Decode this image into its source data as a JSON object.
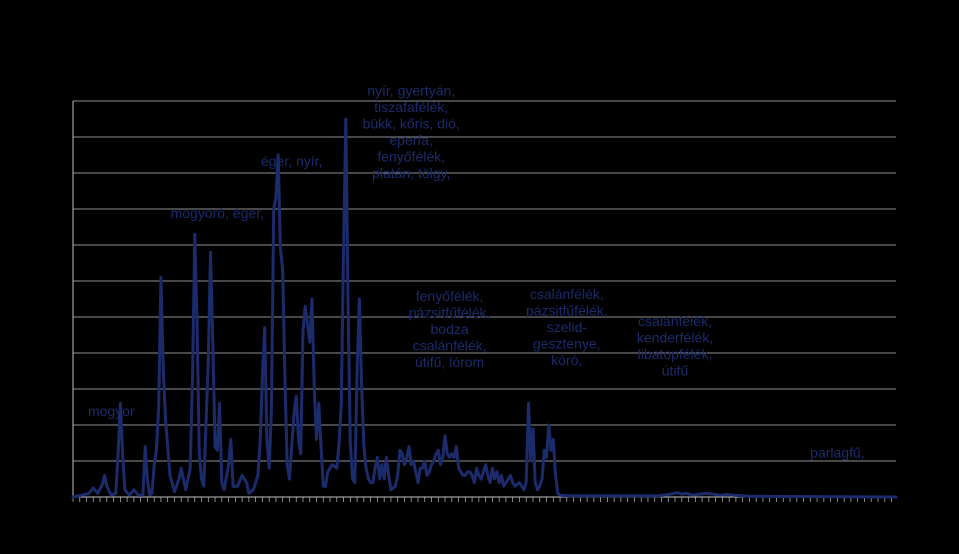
{
  "chart_data": {
    "type": "line",
    "title": "",
    "xlabel": "",
    "ylabel": "",
    "x_start": 0,
    "x_end": 365,
    "ylim": [
      0,
      11
    ],
    "grid": true,
    "legend": "none",
    "series": [
      {
        "color": "#1b2b6b",
        "points": [
          [
            0,
            0
          ],
          [
            4,
            0.05
          ],
          [
            7,
            0.1
          ],
          [
            9,
            0.25
          ],
          [
            11,
            0.1
          ],
          [
            13,
            0.35
          ],
          [
            14,
            0.6
          ],
          [
            15,
            0.3
          ],
          [
            17,
            0.05
          ],
          [
            19,
            0.1
          ],
          [
            20,
            1.2
          ],
          [
            21,
            2.6
          ],
          [
            22,
            1.2
          ],
          [
            23,
            0.2
          ],
          [
            25,
            0.05
          ],
          [
            27,
            0.2
          ],
          [
            29,
            0.05
          ],
          [
            31,
            0.05
          ],
          [
            32,
            1.4
          ],
          [
            33,
            0.5
          ],
          [
            34,
            0.05
          ],
          [
            35,
            0.1
          ],
          [
            36,
            0.9
          ],
          [
            37,
            1.3
          ],
          [
            38,
            2.5
          ],
          [
            39,
            6.1
          ],
          [
            40,
            3.6
          ],
          [
            41,
            2.2
          ],
          [
            43,
            0.6
          ],
          [
            45,
            0.15
          ],
          [
            47,
            0.5
          ],
          [
            48,
            0.8
          ],
          [
            50,
            0.2
          ],
          [
            52,
            0.8
          ],
          [
            53,
            3.3
          ],
          [
            54,
            7.3
          ],
          [
            55,
            4.9
          ],
          [
            56,
            1.2
          ],
          [
            57,
            0.5
          ],
          [
            58,
            0.3
          ],
          [
            60,
            3.8
          ],
          [
            61,
            6.8
          ],
          [
            62,
            4.3
          ],
          [
            63,
            1.4
          ],
          [
            64,
            1.3
          ],
          [
            65,
            2.6
          ],
          [
            66,
            0.4
          ],
          [
            67,
            0.2
          ],
          [
            69,
            0.9
          ],
          [
            70,
            1.6
          ],
          [
            71,
            0.3
          ],
          [
            73,
            0.3
          ],
          [
            75,
            0.6
          ],
          [
            77,
            0.4
          ],
          [
            78,
            0.1
          ],
          [
            80,
            0.2
          ],
          [
            82,
            0.6
          ],
          [
            83,
            1.5
          ],
          [
            84,
            3.3
          ],
          [
            85,
            4.7
          ],
          [
            86,
            1.6
          ],
          [
            87,
            0.8
          ],
          [
            88,
            2.4
          ],
          [
            89,
            8.0
          ],
          [
            90,
            8.3
          ],
          [
            91,
            9.5
          ],
          [
            92,
            6.9
          ],
          [
            93,
            6.3
          ],
          [
            94,
            3.2
          ],
          [
            95,
            0.9
          ],
          [
            96,
            0.5
          ],
          [
            97,
            1.4
          ],
          [
            98,
            2.3
          ],
          [
            99,
            2.8
          ],
          [
            100,
            1.6
          ],
          [
            101,
            1.2
          ],
          [
            102,
            4.6
          ],
          [
            103,
            5.3
          ],
          [
            104,
            4.8
          ],
          [
            105,
            4.3
          ],
          [
            106,
            5.5
          ],
          [
            107,
            3.0
          ],
          [
            108,
            1.6
          ],
          [
            109,
            2.6
          ],
          [
            110,
            1.4
          ],
          [
            111,
            0.3
          ],
          [
            112,
            0.3
          ],
          [
            113,
            0.7
          ],
          [
            115,
            0.9
          ],
          [
            117,
            0.8
          ],
          [
            118,
            1.5
          ],
          [
            119,
            2.6
          ],
          [
            120,
            7.0
          ],
          [
            121,
            10.5
          ],
          [
            122,
            5.3
          ],
          [
            123,
            1.5
          ],
          [
            124,
            0.5
          ],
          [
            125,
            0.4
          ],
          [
            126,
            3.5
          ],
          [
            127,
            5.5
          ],
          [
            128,
            3.1
          ],
          [
            129,
            1.4
          ],
          [
            130,
            0.8
          ],
          [
            131,
            0.5
          ],
          [
            132,
            0.4
          ],
          [
            133,
            0.4
          ],
          [
            134,
            0.8
          ],
          [
            135,
            1.1
          ],
          [
            136,
            0.5
          ],
          [
            137,
            0.9
          ],
          [
            138,
            0.5
          ],
          [
            139,
            1.1
          ],
          [
            140,
            0.6
          ],
          [
            141,
            0.2
          ],
          [
            143,
            0.3
          ],
          [
            144,
            0.6
          ],
          [
            145,
            1.3
          ],
          [
            146,
            1.2
          ],
          [
            147,
            0.9
          ],
          [
            148,
            1.1
          ],
          [
            149,
            1.4
          ],
          [
            150,
            0.9
          ],
          [
            151,
            1.0
          ],
          [
            152,
            0.7
          ],
          [
            153,
            0.4
          ],
          [
            154,
            0.8
          ],
          [
            155,
            0.8
          ],
          [
            156,
            1.0
          ],
          [
            157,
            0.6
          ],
          [
            158,
            0.7
          ],
          [
            159,
            0.9
          ],
          [
            160,
            1.0
          ],
          [
            161,
            1.2
          ],
          [
            162,
            1.3
          ],
          [
            163,
            0.9
          ],
          [
            164,
            1.1
          ],
          [
            165,
            1.7
          ],
          [
            166,
            1.2
          ],
          [
            167,
            1.1
          ],
          [
            168,
            1.2
          ],
          [
            169,
            1.1
          ],
          [
            170,
            1.4
          ],
          [
            171,
            0.8
          ],
          [
            172,
            0.7
          ],
          [
            173,
            0.6
          ],
          [
            174,
            0.6
          ],
          [
            175,
            0.7
          ],
          [
            176,
            0.7
          ],
          [
            177,
            0.6
          ],
          [
            178,
            0.4
          ],
          [
            179,
            0.8
          ],
          [
            180,
            0.6
          ],
          [
            181,
            0.5
          ],
          [
            182,
            0.7
          ],
          [
            183,
            0.9
          ],
          [
            184,
            0.6
          ],
          [
            185,
            0.4
          ],
          [
            186,
            0.8
          ],
          [
            187,
            0.5
          ],
          [
            188,
            0.7
          ],
          [
            189,
            0.4
          ],
          [
            190,
            0.6
          ],
          [
            191,
            0.3
          ],
          [
            192,
            0.4
          ],
          [
            193,
            0.5
          ],
          [
            194,
            0.6
          ],
          [
            195,
            0.4
          ],
          [
            196,
            0.3
          ],
          [
            198,
            0.4
          ],
          [
            200,
            0.2
          ],
          [
            201,
            0.4
          ],
          [
            202,
            2.6
          ],
          [
            203,
            1.0
          ],
          [
            204,
            1.9
          ],
          [
            205,
            0.4
          ],
          [
            206,
            0.2
          ],
          [
            207,
            0.3
          ],
          [
            208,
            0.5
          ],
          [
            209,
            1.3
          ],
          [
            210,
            1.1
          ],
          [
            211,
            2.0
          ],
          [
            212,
            1.3
          ],
          [
            213,
            1.6
          ],
          [
            214,
            0.6
          ],
          [
            215,
            0.1
          ],
          [
            216,
            0.05
          ],
          [
            220,
            0.03
          ],
          [
            260,
            0.03
          ],
          [
            265,
            0.08
          ],
          [
            268,
            0.12
          ],
          [
            270,
            0.08
          ],
          [
            272,
            0.1
          ],
          [
            275,
            0.05
          ],
          [
            278,
            0.08
          ],
          [
            281,
            0.1
          ],
          [
            284,
            0.08
          ],
          [
            287,
            0.05
          ],
          [
            290,
            0.07
          ],
          [
            293,
            0.05
          ],
          [
            296,
            0.04
          ],
          [
            300,
            0.02
          ],
          [
            365,
            0
          ]
        ]
      }
    ],
    "annotations": [
      {
        "x": 17,
        "y": 2.25,
        "lines": [
          "mogyor"
        ]
      },
      {
        "x": 64,
        "y": 7.75,
        "lines": [
          "mogyoró, éger,"
        ]
      },
      {
        "x": 97,
        "y": 9.2,
        "lines": [
          "éger, nyír,"
        ]
      },
      {
        "x": 150,
        "y": 11.15,
        "lines": [
          "nyír, gyertyán,",
          "tiszafafélék,",
          "bükk, kőris, dió,",
          "eperfa,",
          "fenyőfélék,",
          "platán, tölgy,"
        ]
      },
      {
        "x": 167,
        "y": 5.45,
        "lines": [
          "fenyőfélék,",
          "pázsitfűfélék,",
          "bodza",
          "csalánfélék,",
          "útifű, lórom"
        ]
      },
      {
        "x": 219,
        "y": 5.5,
        "lines": [
          "csalánfélék,",
          "pázsitfűfélék,",
          "szelid-",
          "gesztenye,",
          "kóró,"
        ]
      },
      {
        "x": 267,
        "y": 4.75,
        "lines": [
          "csalánfélék,",
          "kenderfélék,",
          "libatopfélék,",
          "útifű"
        ]
      },
      {
        "x": 339,
        "y": 1.1,
        "lines": [
          "parlagfű,"
        ]
      }
    ]
  }
}
